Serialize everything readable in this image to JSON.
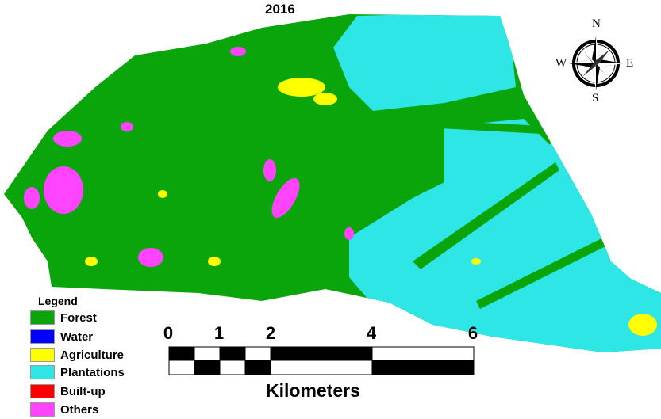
{
  "title": "2016",
  "legend": {
    "title": "Legend",
    "items": [
      {
        "label": "Forest",
        "color": "#0aa50a"
      },
      {
        "label": "Water",
        "color": "#0000ff"
      },
      {
        "label": "Agriculture",
        "color": "#ffff00"
      },
      {
        "label": "Plantations",
        "color": "#2ee6e6"
      },
      {
        "label": "Built-up",
        "color": "#ff0000"
      },
      {
        "label": "Others",
        "color": "#ff44ff"
      }
    ]
  },
  "scale_bar": {
    "ticks": [
      "0",
      "1",
      "2",
      "4",
      "6"
    ],
    "units": "Kilometers"
  },
  "compass": {
    "n": "N",
    "s": "S",
    "e": "E",
    "w": "W"
  }
}
